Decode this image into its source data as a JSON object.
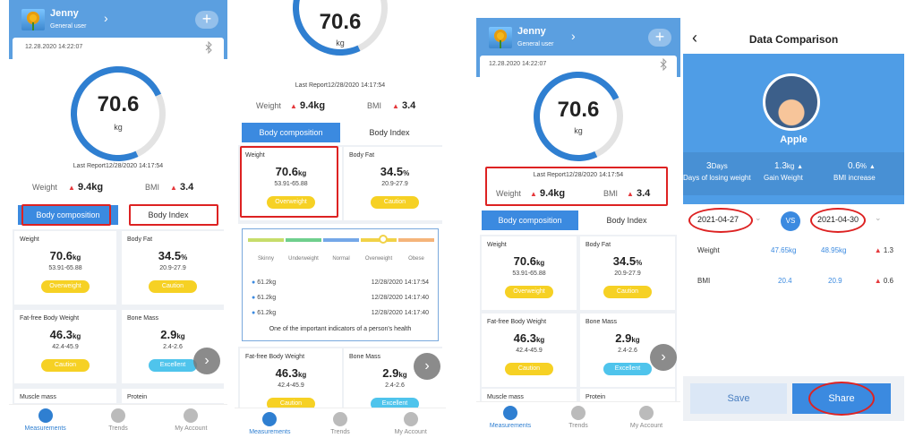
{
  "user": {
    "name": "Jenny",
    "role": "General user"
  },
  "status": {
    "timestamp": "12.28.2020 14:22:07"
  },
  "gauge": {
    "value": "70.6",
    "unit": "kg"
  },
  "last_report": "Last Report12/28/2020 14:17:54",
  "summary": {
    "weight_label": "Weight",
    "weight_value": "9.4kg",
    "bmi_label": "BMI",
    "bmi_value": "3.4"
  },
  "tabs": {
    "body_composition": "Body composition",
    "body_index": "Body Index"
  },
  "metrics": [
    {
      "title": "Weight",
      "value": "70.6",
      "unit": "kg",
      "range": "53.91-65.88",
      "status": "Overweight"
    },
    {
      "title": "Body Fat",
      "value": "34.5",
      "unit": "%",
      "range": "20.9-27.9",
      "status": "Caution"
    },
    {
      "title": "Fat-free Body Weight",
      "value": "46.3",
      "unit": "kg",
      "range": "42.4-45.9",
      "status": "Caution"
    },
    {
      "title": "Bone Mass",
      "value": "2.9",
      "unit": "kg",
      "range": "2.4-2.6",
      "status": "Excellent"
    },
    {
      "title": "Muscle mass"
    },
    {
      "title": "Protein"
    }
  ],
  "nav": {
    "measurements": "Measurements",
    "trends": "Trends",
    "account": "My Account"
  },
  "popup": {
    "scale": [
      "Skinny",
      "Underweight",
      "Normal",
      "Overweight",
      "Obese"
    ],
    "history": [
      {
        "value": "61.2kg",
        "date": "12/28/2020 14:17:54"
      },
      {
        "value": "61.2kg",
        "date": "12/28/2020 14:17:40"
      },
      {
        "value": "61.2kg",
        "date": "12/28/2020 14:17:40"
      }
    ],
    "note": "One of the important indicators of a person's health"
  },
  "comparison": {
    "title": "Data Comparison",
    "name": "Apple",
    "stats": [
      {
        "value": "3",
        "unit": "Days",
        "label": "Days of losing weight"
      },
      {
        "value": "1.3",
        "unit": "kg",
        "label": "Gain Weight"
      },
      {
        "value": "0.6",
        "unit": "%",
        "label": "BMI increase"
      }
    ],
    "date_a": "2021-04-27",
    "vs": "VS",
    "date_b": "2021-04-30",
    "rows": [
      {
        "label": "Weight",
        "a": "47.65kg",
        "b": "48.95kg",
        "diff": "1.3"
      },
      {
        "label": "BMI",
        "a": "20.4",
        "b": "20.9",
        "diff": "0.6"
      }
    ],
    "save": "Save",
    "share": "Share"
  },
  "colors": {
    "primary": "#3b8ae0",
    "header": "#5b9fe0",
    "alert": "#e5383b",
    "caution": "#f6d124",
    "excellent": "#4fc4ec"
  }
}
